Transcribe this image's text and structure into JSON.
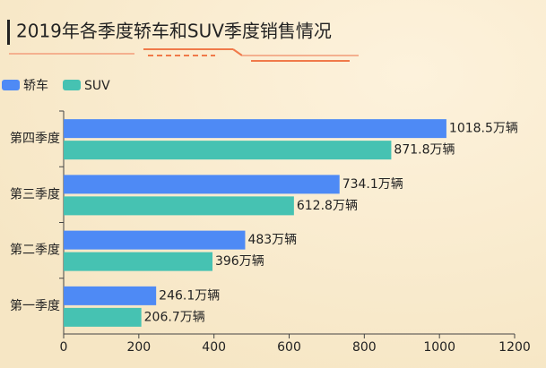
{
  "chart_data": {
    "type": "hbar",
    "title": "2019年各季度轿车和SUV季度销售情况",
    "categories": [
      "第四季度",
      "第三季度",
      "第二季度",
      "第一季度"
    ],
    "series": [
      {
        "name": "轿车",
        "color": "#4e8af5",
        "values": [
          1018.5,
          734.1,
          483,
          246.1
        ],
        "value_labels": [
          "1018.5万辆",
          "734.1万辆",
          "483万辆",
          "246.1万辆"
        ]
      },
      {
        "name": "SUV",
        "color": "#46c2b2",
        "values": [
          871.8,
          612.8,
          396,
          206.7
        ],
        "value_labels": [
          "871.8万辆",
          "612.8万辆",
          "396万辆",
          "206.7万辆"
        ]
      }
    ],
    "xlim": [
      0,
      1200
    ],
    "xticks": [
      0,
      200,
      400,
      600,
      800,
      1000,
      1200
    ],
    "legend": "top-left"
  }
}
